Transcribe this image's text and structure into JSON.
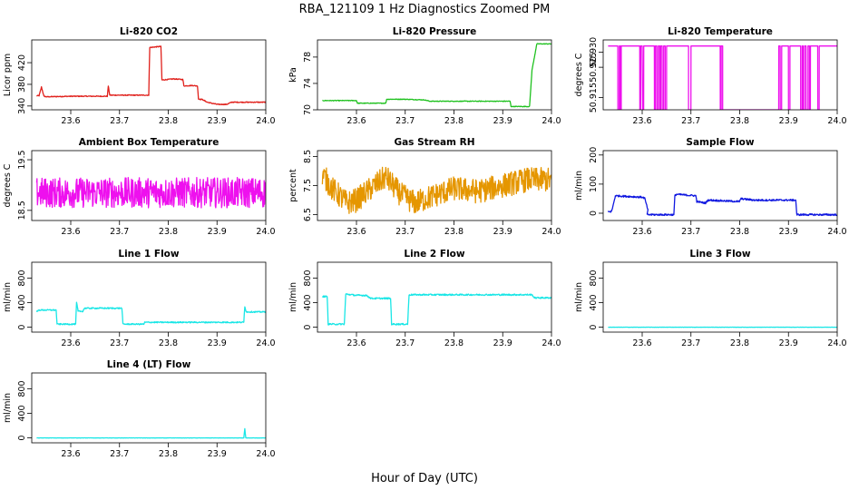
{
  "figure": {
    "title": "RBA_121109  1 Hz Diagnostics Zoomed PM",
    "xlabel": "Hour of Day (UTC)"
  },
  "chart_data": [
    {
      "type": "line",
      "title": "Li-820 CO2",
      "ylabel": "Licor ppm",
      "color": "#e0201b",
      "xlim": [
        23.52,
        24.0
      ],
      "ylim": [
        333,
        462
      ],
      "xticks": [
        "23.6",
        "23.7",
        "23.8",
        "23.9",
        "24.0"
      ],
      "yticks": [
        "340",
        "380",
        "420"
      ],
      "series": [
        {
          "name": "CO2",
          "noise": 0.8,
          "x": [
            23.53,
            23.535,
            23.54,
            23.545,
            23.55,
            23.6,
            23.675,
            23.677,
            23.68,
            23.73,
            23.76,
            23.762,
            23.785,
            23.787,
            23.81,
            23.83,
            23.832,
            23.85,
            23.86,
            23.862,
            23.87,
            23.88,
            23.9,
            23.92,
            23.93,
            23.95,
            24.0
          ],
          "y": [
            359,
            359,
            375,
            358,
            357,
            358,
            358,
            377,
            360,
            360,
            360,
            448,
            450,
            388,
            390,
            389,
            377,
            378,
            377,
            353,
            352,
            347,
            343,
            343,
            347,
            347,
            347
          ]
        }
      ]
    },
    {
      "type": "line",
      "title": "Li-820 Pressure",
      "ylabel": "kPa",
      "color": "#1fc11f",
      "xlim": [
        23.52,
        24.0
      ],
      "ylim": [
        70,
        80.6
      ],
      "xticks": [
        "23.6",
        "23.7",
        "23.8",
        "23.9",
        "24.0"
      ],
      "yticks": [
        "70",
        "74",
        "78"
      ],
      "series": [
        {
          "name": "Pressure",
          "noise": 0.05,
          "x": [
            23.53,
            23.6,
            23.602,
            23.66,
            23.662,
            23.7,
            23.74,
            23.75,
            23.8,
            23.85,
            23.915,
            23.917,
            23.955,
            23.96,
            23.97,
            23.975,
            24.0
          ],
          "y": [
            71.4,
            71.4,
            71.0,
            71.0,
            71.6,
            71.6,
            71.5,
            71.3,
            71.3,
            71.3,
            71.3,
            70.5,
            70.5,
            76.0,
            80.0,
            80.0,
            80.0
          ]
        }
      ]
    },
    {
      "type": "line",
      "title": "Li-820 Temperature",
      "ylabel": "degrees C",
      "color": "#ee10ee",
      "xlim": [
        23.52,
        24.0
      ],
      "ylim": [
        50.911,
        50.934
      ],
      "xticks": [
        "23.6",
        "23.7",
        "23.8",
        "23.9",
        "24.0"
      ],
      "yticks": [
        "50.915",
        "50.925",
        "50.930"
      ],
      "series": [
        {
          "name": "Temperature",
          "noise": 0,
          "x": [
            23.53,
            23.55,
            23.5501,
            23.553,
            23.5531,
            23.555,
            23.5551,
            23.557,
            23.5571,
            23.595,
            23.5951,
            23.597,
            23.5971,
            23.6,
            23.6011,
            23.603,
            23.6031,
            23.625,
            23.6251,
            23.627,
            23.6271,
            23.63,
            23.6301,
            23.633,
            23.6331,
            23.636,
            23.6361,
            23.638,
            23.6381,
            23.641,
            23.6411,
            23.644,
            23.6441,
            23.647,
            23.6471,
            23.65,
            23.6501,
            23.695,
            23.6951,
            23.7,
            23.7001,
            23.76,
            23.7601,
            23.762,
            23.7621,
            23.765,
            23.7651,
            23.88,
            23.8801,
            23.883,
            23.8831,
            23.886,
            23.8861,
            23.9,
            23.9001,
            23.903,
            23.9031,
            23.925,
            23.9251,
            23.928,
            23.9281,
            23.93,
            23.9301,
            23.933,
            23.9331,
            23.936,
            23.9361,
            23.94,
            23.9401,
            23.943,
            23.9431,
            23.945,
            23.9451,
            23.96,
            23.9601,
            23.963,
            23.9631,
            24.0
          ],
          "y": [
            50.932,
            50.932,
            50.911,
            50.911,
            50.932,
            50.932,
            50.911,
            50.911,
            50.932,
            50.932,
            50.911,
            50.911,
            50.932,
            50.932,
            50.911,
            50.911,
            50.932,
            50.932,
            50.911,
            50.911,
            50.932,
            50.932,
            50.911,
            50.911,
            50.932,
            50.932,
            50.911,
            50.911,
            50.932,
            50.932,
            50.911,
            50.911,
            50.932,
            50.932,
            50.911,
            50.911,
            50.932,
            50.932,
            50.911,
            50.911,
            50.932,
            50.932,
            50.911,
            50.911,
            50.932,
            50.932,
            50.911,
            50.911,
            50.932,
            50.932,
            50.911,
            50.911,
            50.932,
            50.932,
            50.911,
            50.911,
            50.932,
            50.932,
            50.911,
            50.911,
            50.932,
            50.932,
            50.911,
            50.911,
            50.932,
            50.932,
            50.911,
            50.911,
            50.932,
            50.932,
            50.911,
            50.911,
            50.932,
            50.932,
            50.911,
            50.911,
            50.932,
            50.932
          ]
        }
      ]
    },
    {
      "type": "line",
      "title": "Ambient Box Temperature",
      "ylabel": "degrees C",
      "color": "#ee10ee",
      "xlim": [
        23.52,
        24.0
      ],
      "ylim": [
        18.3,
        19.68
      ],
      "xticks": [
        "23.6",
        "23.7",
        "23.8",
        "23.9",
        "24.0"
      ],
      "yticks": [
        "18.5",
        "19.5"
      ],
      "series": [
        {
          "name": "Ambient",
          "noise": 0.3,
          "x": [
            23.53,
            23.6,
            23.7,
            23.8,
            23.9,
            24.0
          ],
          "y": [
            18.85,
            18.85,
            18.85,
            18.85,
            18.85,
            18.85
          ]
        }
      ]
    },
    {
      "type": "line",
      "title": "Gas Stream RH",
      "ylabel": "percent",
      "color": "#e59600",
      "xlim": [
        23.52,
        24.0
      ],
      "ylim": [
        6.3,
        8.7
      ],
      "xticks": [
        "23.6",
        "23.7",
        "23.8",
        "23.9",
        "24.0"
      ],
      "yticks": [
        "6.5",
        "7.5",
        "8.5"
      ],
      "series": [
        {
          "name": "RH",
          "noise": 0.42,
          "x": [
            23.53,
            23.55,
            23.58,
            23.6,
            23.63,
            23.66,
            23.69,
            23.72,
            23.75,
            23.8,
            23.85,
            23.9,
            23.95,
            24.0
          ],
          "y": [
            7.9,
            7.4,
            6.9,
            7.0,
            7.4,
            7.8,
            7.2,
            6.9,
            7.1,
            7.4,
            7.3,
            7.5,
            7.7,
            7.7
          ]
        }
      ]
    },
    {
      "type": "line",
      "title": "Sample Flow",
      "ylabel": "ml/min",
      "color": "#1018e0",
      "xlim": [
        23.52,
        24.0
      ],
      "ylim": [
        -25,
        215
      ],
      "xticks": [
        "23.6",
        "23.7",
        "23.8",
        "23.9",
        "24.0"
      ],
      "yticks": [
        "0",
        "100",
        "200"
      ],
      "series": [
        {
          "name": "Sample",
          "noise": 3,
          "x": [
            23.53,
            23.535,
            23.538,
            23.545,
            23.6,
            23.605,
            23.612,
            23.61,
            23.645,
            23.665,
            23.667,
            23.67,
            23.71,
            23.712,
            23.73,
            23.735,
            23.8,
            23.802,
            23.83,
            23.9,
            23.915,
            23.917,
            24.0
          ],
          "y": [
            5,
            5,
            10,
            60,
            55,
            52,
            10,
            -5,
            -5,
            -5,
            60,
            65,
            60,
            40,
            35,
            45,
            40,
            50,
            45,
            45,
            45,
            -5,
            -5
          ]
        }
      ]
    },
    {
      "type": "line",
      "title": "Line 1 Flow",
      "ylabel": "ml/min",
      "color": "#19e6e6",
      "xlim": [
        23.52,
        24.0
      ],
      "ylim": [
        -80,
        1060
      ],
      "xticks": [
        "23.6",
        "23.7",
        "23.8",
        "23.9",
        "24.0"
      ],
      "yticks": [
        "0",
        "400",
        "800"
      ],
      "series": [
        {
          "name": "Line 1",
          "noise": 10,
          "x": [
            23.53,
            23.535,
            23.57,
            23.572,
            23.61,
            23.612,
            23.615,
            23.625,
            23.628,
            23.655,
            23.658,
            23.705,
            23.707,
            23.75,
            23.752,
            23.955,
            23.957,
            23.96,
            24.0
          ],
          "y": [
            250,
            280,
            280,
            50,
            50,
            400,
            260,
            260,
            310,
            310,
            310,
            310,
            50,
            50,
            80,
            80,
            340,
            250,
            250
          ]
        }
      ]
    },
    {
      "type": "line",
      "title": "Line 2 Flow",
      "ylabel": "ml/min",
      "color": "#19e6e6",
      "xlim": [
        23.52,
        24.0
      ],
      "ylim": [
        -80,
        1060
      ],
      "xticks": [
        "23.6",
        "23.7",
        "23.8",
        "23.9",
        "24.0"
      ],
      "yticks": [
        "0",
        "400",
        "800"
      ],
      "series": [
        {
          "name": "Line 2",
          "noise": 12,
          "x": [
            23.53,
            23.54,
            23.542,
            23.575,
            23.578,
            23.6,
            23.62,
            23.63,
            23.67,
            23.672,
            23.705,
            23.708,
            23.8,
            23.9,
            23.96,
            23.965,
            24.0
          ],
          "y": [
            500,
            500,
            50,
            50,
            540,
            520,
            520,
            470,
            470,
            50,
            50,
            530,
            530,
            530,
            530,
            480,
            480
          ]
        }
      ]
    },
    {
      "type": "line",
      "title": "Line 3 Flow",
      "ylabel": "ml/min",
      "color": "#19e6e6",
      "xlim": [
        23.52,
        24.0
      ],
      "ylim": [
        -80,
        1060
      ],
      "xticks": [
        "23.6",
        "23.7",
        "23.8",
        "23.9",
        "24.0"
      ],
      "yticks": [
        "0",
        "400",
        "800"
      ],
      "series": [
        {
          "name": "Line 3",
          "noise": 2,
          "x": [
            23.53,
            24.0
          ],
          "y": [
            0,
            0
          ]
        }
      ]
    },
    {
      "type": "line",
      "title": "Line 4 (LT) Flow",
      "ylabel": "ml/min",
      "color": "#19e6e6",
      "xlim": [
        23.52,
        24.0
      ],
      "ylim": [
        -80,
        1060
      ],
      "xticks": [
        "23.6",
        "23.7",
        "23.8",
        "23.9",
        "24.0"
      ],
      "yticks": [
        "0",
        "400",
        "800"
      ],
      "series": [
        {
          "name": "Line 4",
          "noise": 2,
          "x": [
            23.53,
            23.955,
            23.957,
            23.959,
            24.0
          ],
          "y": [
            0,
            0,
            150,
            0,
            0
          ]
        }
      ]
    }
  ]
}
